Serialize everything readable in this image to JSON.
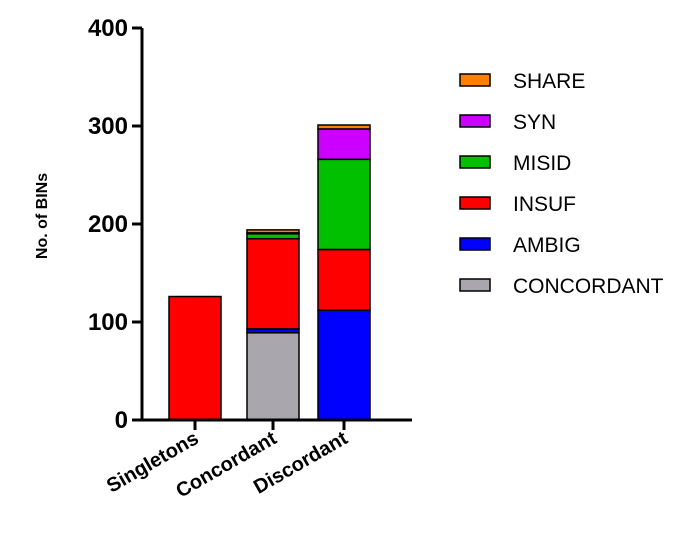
{
  "chart_data": {
    "type": "bar",
    "stacked": true,
    "title": "",
    "xlabel": "",
    "ylabel": "No. of BINs",
    "ylim": [
      0,
      400
    ],
    "yticks": [
      0,
      100,
      200,
      300,
      400
    ],
    "categories": [
      "Singletons",
      "Concordant",
      "Discordant"
    ],
    "series": [
      {
        "name": "CONCORDANT",
        "color": "#a9a7ad",
        "values": [
          0,
          89,
          0
        ]
      },
      {
        "name": "AMBIG",
        "color": "#0000ff",
        "values": [
          0,
          4,
          112
        ]
      },
      {
        "name": "INSUF",
        "color": "#ff0000",
        "values": [
          126,
          92,
          62
        ]
      },
      {
        "name": "MISID",
        "color": "#00c000",
        "values": [
          0,
          5,
          92
        ]
      },
      {
        "name": "SYN",
        "color": "#cc00ff",
        "values": [
          0,
          1,
          31
        ]
      },
      {
        "name": "SHARE",
        "color": "#ff8000",
        "values": [
          0,
          3,
          4
        ]
      }
    ],
    "legend_order": [
      "SHARE",
      "SYN",
      "MISID",
      "INSUF",
      "AMBIG",
      "CONCORDANT"
    ],
    "legend_position": "right",
    "grid": false
  }
}
